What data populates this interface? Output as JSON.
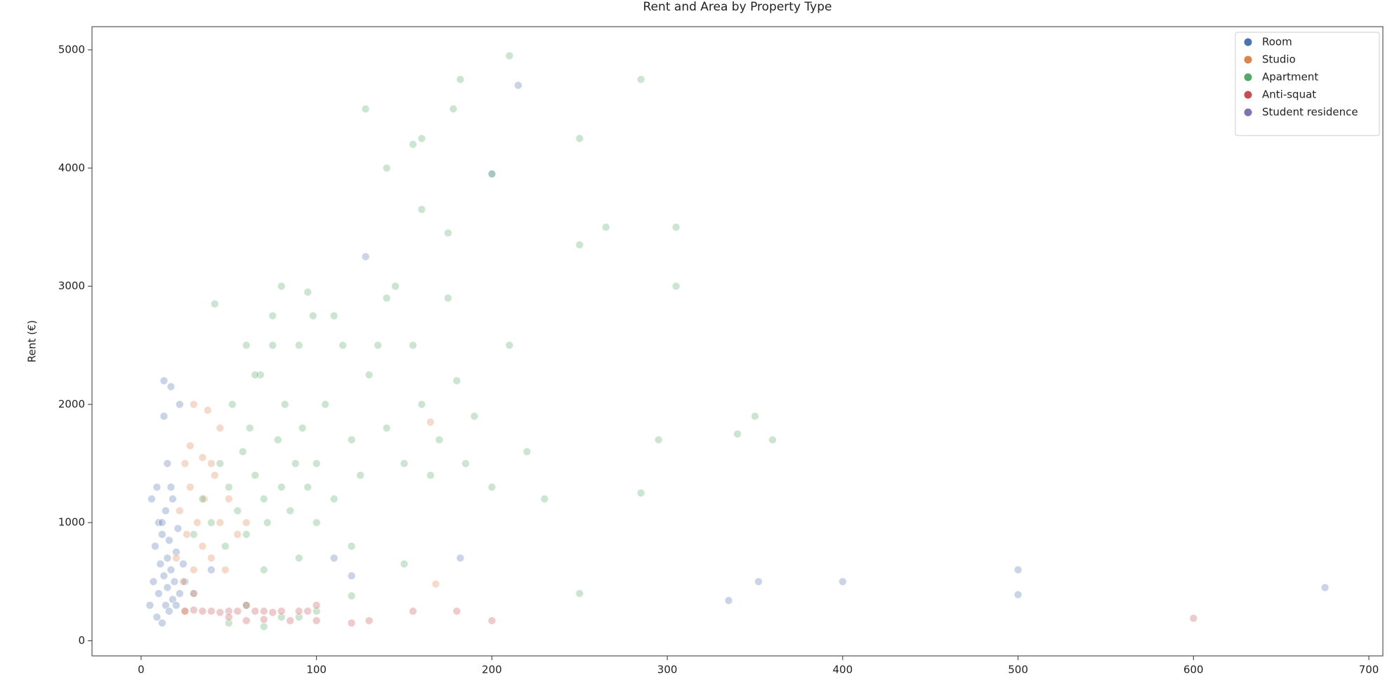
{
  "chart_data": {
    "type": "scatter",
    "title": "Rent and Area by Property Type",
    "y_label": "Rent (€)",
    "xlim": [
      -28,
      708
    ],
    "ylim": [
      -128,
      5196
    ],
    "xticks": [
      0,
      100,
      200,
      300,
      400,
      500,
      600,
      700
    ],
    "yticks": [
      0,
      1000,
      2000,
      3000,
      4000,
      5000
    ],
    "legend": "upper right",
    "series": [
      {
        "name": "Room",
        "color": "#4c72b0",
        "x": [
          5,
          7,
          8,
          9,
          10,
          10,
          11,
          12,
          12,
          13,
          14,
          14,
          15,
          15,
          16,
          16,
          17,
          18,
          18,
          19,
          20,
          20,
          21,
          22,
          24,
          25,
          6,
          9,
          13,
          17,
          22,
          15,
          13,
          17,
          12,
          215,
          200,
          128,
          400,
          500,
          500,
          352,
          335,
          675,
          182,
          120,
          110,
          30,
          40
        ],
        "values": [
          300,
          500,
          800,
          200,
          400,
          1000,
          650,
          150,
          900,
          550,
          300,
          1100,
          700,
          450,
          250,
          850,
          600,
          350,
          1200,
          500,
          750,
          300,
          950,
          400,
          650,
          500,
          1200,
          1300,
          2200,
          2150,
          2000,
          1500,
          1900,
          1300,
          1000,
          4700,
          3950,
          3250,
          500,
          600,
          390,
          500,
          340,
          450,
          700,
          550,
          700,
          400,
          600
        ]
      },
      {
        "name": "Studio",
        "color": "#dd8452",
        "x": [
          20,
          22,
          24,
          25,
          26,
          28,
          30,
          30,
          32,
          35,
          36,
          38,
          40,
          42,
          45,
          48,
          50,
          55,
          60,
          28,
          30,
          40,
          25,
          168,
          165,
          35,
          45
        ],
        "values": [
          700,
          1100,
          500,
          1500,
          900,
          1300,
          2000,
          600,
          1000,
          800,
          1200,
          1950,
          700,
          1400,
          1000,
          600,
          1200,
          900,
          1000,
          1650,
          400,
          1500,
          250,
          480,
          1850,
          1550,
          1800
        ]
      },
      {
        "name": "Apartment",
        "color": "#55a868",
        "x": [
          30,
          35,
          40,
          45,
          48,
          50,
          52,
          55,
          58,
          60,
          62,
          65,
          68,
          70,
          72,
          75,
          78,
          80,
          82,
          85,
          88,
          90,
          92,
          95,
          98,
          100,
          105,
          110,
          115,
          120,
          125,
          130,
          135,
          140,
          145,
          150,
          155,
          160,
          165,
          170,
          175,
          180,
          185,
          190,
          200,
          210,
          220,
          230,
          60,
          70,
          80,
          90,
          100,
          110,
          120,
          140,
          150,
          60,
          80,
          100,
          120,
          50,
          70,
          90,
          210,
          182,
          285,
          250,
          128,
          178,
          155,
          160,
          305,
          305,
          265,
          250,
          350,
          360,
          340,
          295,
          285,
          250,
          42,
          175,
          160,
          200,
          140,
          65,
          95,
          75
        ],
        "values": [
          900,
          1200,
          1000,
          1500,
          800,
          1300,
          2000,
          1100,
          1600,
          900,
          1800,
          1400,
          2250,
          1200,
          1000,
          2500,
          1700,
          1300,
          2000,
          1100,
          1500,
          2500,
          1800,
          1300,
          2750,
          1500,
          2000,
          1200,
          2500,
          1700,
          1400,
          2250,
          2500,
          1800,
          3000,
          1500,
          2500,
          2000,
          1400,
          1700,
          2900,
          2200,
          1500,
          1900,
          1300,
          2500,
          1600,
          1200,
          2500,
          600,
          3000,
          700,
          1000,
          2750,
          800,
          2900,
          650,
          300,
          200,
          250,
          380,
          150,
          120,
          200,
          4950,
          4750,
          4750,
          4250,
          4500,
          4500,
          4200,
          4250,
          3500,
          3000,
          3500,
          3350,
          1900,
          1700,
          1750,
          1700,
          1250,
          400,
          2850,
          3450,
          3650,
          3950,
          4000,
          2250,
          2950,
          2750
        ]
      },
      {
        "name": "Anti-squat",
        "color": "#c44e52",
        "x": [
          25,
          30,
          35,
          40,
          45,
          50,
          55,
          60,
          65,
          70,
          75,
          80,
          85,
          90,
          95,
          100,
          60,
          100,
          600,
          200,
          180,
          155,
          130,
          120,
          50,
          70
        ],
        "values": [
          250,
          260,
          250,
          250,
          240,
          250,
          250,
          170,
          250,
          250,
          240,
          250,
          170,
          250,
          250,
          170,
          300,
          300,
          190,
          170,
          250,
          250,
          170,
          150,
          200,
          180
        ]
      },
      {
        "name": "Student residence",
        "color": "#8172b3",
        "x": [],
        "values": []
      }
    ]
  }
}
